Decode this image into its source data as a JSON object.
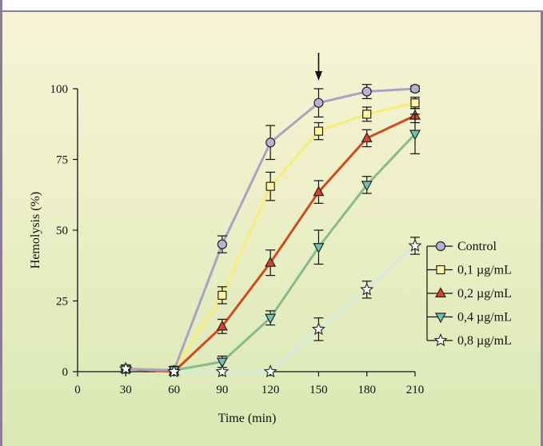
{
  "chart_data": {
    "type": "line",
    "xlabel": "Time (min)",
    "ylabel": "Hemolysis (%)",
    "xlim": [
      0,
      210
    ],
    "ylim": [
      0,
      100
    ],
    "x_ticks": [
      "0",
      "30",
      "60",
      "90",
      "120",
      "150",
      "180",
      "210"
    ],
    "y_ticks": [
      "0",
      "25",
      "50",
      "75",
      "100"
    ],
    "grid": false,
    "legend_position": "right",
    "arrow_annotation_x": 150,
    "x": [
      30,
      60,
      90,
      120,
      150,
      180,
      210
    ],
    "series": [
      {
        "name": "Control",
        "marker": "circle",
        "line_color": "#a9a3c3",
        "marker_color": "#b7b1d3",
        "values": [
          1,
          0.5,
          45,
          81,
          95,
          99,
          100
        ],
        "errors": [
          0,
          0,
          3,
          6,
          5,
          2.5,
          1
        ]
      },
      {
        "name": "0,1 µg/mL",
        "marker": "square",
        "line_color": "#f7ee78",
        "marker_color": "#fff7a0",
        "values": [
          1,
          0.5,
          27,
          65.5,
          85,
          91,
          95
        ],
        "errors": [
          0,
          0,
          3,
          5,
          3,
          2.5,
          2
        ]
      },
      {
        "name": "0,2 µg/mL",
        "marker": "triangle-up",
        "line_color": "#d14a21",
        "marker_color": "#d9432a",
        "values": [
          1,
          0,
          16,
          38.5,
          63.5,
          82.5,
          90.5
        ],
        "errors": [
          0,
          0,
          2.5,
          4.5,
          4,
          3,
          2.5
        ]
      },
      {
        "name": "0,4 µg/mL",
        "marker": "triangle-down",
        "line_color": "#86bb8d",
        "marker_color": "#6ec3b5",
        "values": [
          1,
          0.5,
          3.5,
          19,
          44,
          66,
          84
        ],
        "errors": [
          0,
          0,
          2,
          2.5,
          6,
          3,
          7
        ]
      },
      {
        "name": "0,8 µg/mL",
        "marker": "star",
        "line_color": "#d3ebde",
        "marker_color": "#ffffff",
        "values": [
          1,
          0,
          0,
          0,
          15,
          29,
          44.5
        ],
        "errors": [
          0,
          0,
          0,
          0,
          4,
          3,
          3
        ]
      }
    ]
  }
}
